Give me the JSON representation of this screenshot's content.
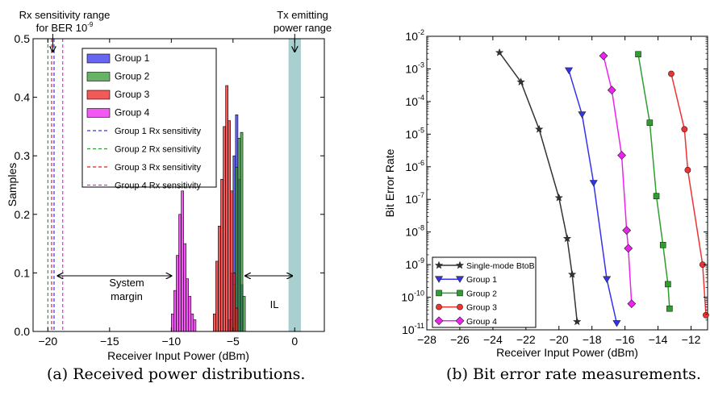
{
  "chart_data": [
    {
      "type": "histogram",
      "caption": "(a) Received power distributions.",
      "xlabel": "Receiver Input Power (dBm)",
      "ylabel": "Samples",
      "xlim": [
        -21.2,
        2.4
      ],
      "ylim": [
        0,
        0.5
      ],
      "x_ticks": [
        -20,
        -15,
        -10,
        -5,
        0
      ],
      "x_tick_labels": [
        "−20",
        "−15",
        "−10",
        "−5",
        "0"
      ],
      "y_ticks": [
        0.0,
        0.1,
        0.2,
        0.3,
        0.4,
        0.5
      ],
      "y_tick_labels": [
        "0.0",
        "0.1",
        "0.2",
        "0.3",
        "0.4",
        "0.5"
      ],
      "legend_position": "top-center",
      "series": [
        {
          "name": "Group 1",
          "color": "#3333ee",
          "bin_width": 0.2,
          "bins": [
            [
              -5.4,
              0.02
            ],
            [
              -5.2,
              0.1
            ],
            [
              -5.0,
              0.3
            ],
            [
              -4.8,
              0.37
            ],
            [
              -4.6,
              0.26
            ],
            [
              -4.4,
              0.08
            ]
          ]
        },
        {
          "name": "Group 2",
          "color": "#339933",
          "bin_width": 0.2,
          "bins": [
            [
              -5.2,
              0.02
            ],
            [
              -5.0,
              0.08
            ],
            [
              -4.8,
              0.28
            ],
            [
              -4.6,
              0.33
            ],
            [
              -4.4,
              0.34
            ],
            [
              -4.2,
              0.06
            ]
          ]
        },
        {
          "name": "Group 3",
          "color": "#ee2222",
          "bin_width": 0.2,
          "bins": [
            [
              -6.6,
              0.03
            ],
            [
              -6.4,
              0.12
            ],
            [
              -6.2,
              0.18
            ],
            [
              -6.0,
              0.26
            ],
            [
              -5.8,
              0.35
            ],
            [
              -5.6,
              0.42
            ],
            [
              -5.4,
              0.36
            ],
            [
              -5.2,
              0.24
            ],
            [
              -5.0,
              0.1
            ],
            [
              -4.8,
              0.04
            ]
          ]
        },
        {
          "name": "Group 4",
          "color": "#ee22ee",
          "bin_width": 0.2,
          "bins": [
            [
              -10.0,
              0.03
            ],
            [
              -9.8,
              0.07
            ],
            [
              -9.6,
              0.13
            ],
            [
              -9.4,
              0.2
            ],
            [
              -9.2,
              0.24
            ],
            [
              -9.0,
              0.15
            ],
            [
              -8.8,
              0.09
            ],
            [
              -8.6,
              0.06
            ],
            [
              -8.4,
              0.03
            ],
            [
              -8.2,
              0.02
            ]
          ]
        }
      ],
      "sensitivity_lines": [
        {
          "name": "Group 1 Rx sensitivity",
          "x": -19.5,
          "color": "#3333ee"
        },
        {
          "name": "Group 2 Rx sensitivity",
          "x": -20.0,
          "color": "#339933"
        },
        {
          "name": "Group 3 Rx sensitivity",
          "x": -19.7,
          "color": "#ee2222"
        },
        {
          "name": "Group 4 Rx sensitivity",
          "x": -18.8,
          "color": "#ee22ee"
        }
      ],
      "tx_range": {
        "x0": -0.5,
        "x1": 0.5,
        "color": "#a9cfcf"
      },
      "annotations": {
        "rx_range_line1": "Rx sensitivity range",
        "rx_range_line2": "for BER 10",
        "rx_range_sup": "-9",
        "tx_line1": "Tx emitting",
        "tx_line2": "power range",
        "system_line1": "System",
        "system_line2": "margin",
        "il": "IL"
      },
      "arrows": {
        "system_margin": [
          -19.2,
          -10.0
        ],
        "il": [
          -4.0,
          -0.2
        ]
      }
    },
    {
      "type": "line",
      "caption": "(b) Bit error rate measurements.",
      "xlabel": "Receiver Input Power (dBm)",
      "ylabel": "Bit Error Rate",
      "xlim": [
        -28,
        -11
      ],
      "ylim": [
        1e-11,
        0.01
      ],
      "yscale": "log",
      "x_ticks": [
        -28,
        -26,
        -24,
        -22,
        -20,
        -18,
        -16,
        -14,
        -12
      ],
      "x_tick_labels": [
        "−28",
        "−26",
        "−24",
        "−22",
        "−20",
        "−18",
        "−16",
        "−14",
        "−12"
      ],
      "y_ticks_exp": [
        -11,
        -10,
        -9,
        -8,
        -7,
        -6,
        -5,
        -4,
        -3,
        -2
      ],
      "y_tick_base": "10",
      "legend_position": "bottom-left",
      "series": [
        {
          "name": "Single-mode BtoB",
          "color": "#333333",
          "marker": "star",
          "x": [
            -23.6,
            -22.3,
            -21.2,
            -20.0,
            -19.5,
            -19.2,
            -18.9
          ],
          "logy": [
            -2.5,
            -3.4,
            -4.85,
            -6.95,
            -8.2,
            -9.3,
            -10.75
          ]
        },
        {
          "name": "Group 1",
          "color": "#3333ee",
          "marker": "tri_down",
          "x": [
            -19.4,
            -18.6,
            -17.9,
            -17.1,
            -16.5
          ],
          "logy": [
            -3.05,
            -4.4,
            -6.5,
            -9.45,
            -10.8
          ]
        },
        {
          "name": "Group 2",
          "color": "#2e9e2e",
          "marker": "square",
          "x": [
            -15.2,
            -14.5,
            -14.1,
            -13.7,
            -13.4,
            -13.3
          ],
          "logy": [
            -2.55,
            -4.65,
            -6.9,
            -8.4,
            -9.6,
            -10.35
          ]
        },
        {
          "name": "Group 3",
          "color": "#ee3333",
          "marker": "circle",
          "x": [
            -13.2,
            -12.4,
            -12.2,
            -11.3,
            -11.1
          ],
          "logy": [
            -3.15,
            -4.85,
            -6.1,
            -9.0,
            -10.55
          ]
        },
        {
          "name": "Group 4",
          "color": "#ee22ee",
          "marker": "diamond",
          "x": [
            -17.3,
            -16.8,
            -16.2,
            -15.9,
            -15.8,
            -15.6
          ],
          "logy": [
            -2.6,
            -3.65,
            -5.65,
            -7.95,
            -8.5,
            -10.2
          ]
        }
      ]
    }
  ]
}
